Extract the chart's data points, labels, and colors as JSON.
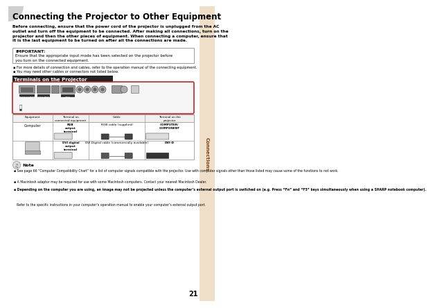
{
  "title": "Connecting the Projector to Other Equipment",
  "bg_color": "#ffffff",
  "sidebar_color": "#f0dfc8",
  "sidebar_text": "Connections",
  "page_number": "21",
  "intro_text": "Before connecting, ensure that the power cord of the projector is unplugged from the AC\noutlet and turn off the equipment to be connected. After making all connections, turn on the\nprojector and then the other pieces of equipment. When connecting a computer, ensure that\nit is the last equipment to be turned on after all the connections are made.",
  "important_title": "IMPORTANT:",
  "important_text": "Ensure that the appropriate input mode has been selected on the projector before\nyou turn on the connected equipment.",
  "bullets": [
    "For more details of connection and cables, refer to the operation manual of the connecting equipment.",
    "You may need other cables or connectors not listed below."
  ],
  "section_title": "Terminals on the Projector",
  "section_title_bg": "#222222",
  "section_title_color": "#ffffff",
  "note_bullets": [
    "See page 66 “Computer Compatibility Chart” for a list of computer signals compatible with the projector. Use with computer signals other than those listed may cause some of the functions to not work.",
    "A Macintosh adaptor may be required for use with some Macintosh computers. Contact your nearest Macintosh Dealer.",
    "Depending on the computer you are using, an image may not be projected unless the computer’s external output port is switched on (e.g. Press “Fn” and “F5” keys simultaneously when using a SHARP notebook computer). Refer to the specific instructions in your computer’s operation manual to enable your computer’s external output port."
  ],
  "table_headers": [
    "Equipment",
    "Terminal on\nconnected equipment",
    "Cable",
    "Terminal on the\nprojector"
  ],
  "row1_eq": "Computer",
  "row1_term1": "RGB\noutput\nterminal",
  "row1_cable1": "RGB cable (supplied)",
  "row1_proj1": "COMPUTER/\nCOMPONENT",
  "row2_term2": "DVI digital\noutput\nterminal",
  "row2_cable2": "DVI Digital cable (commercially available)",
  "row2_proj2": "DVI-D"
}
